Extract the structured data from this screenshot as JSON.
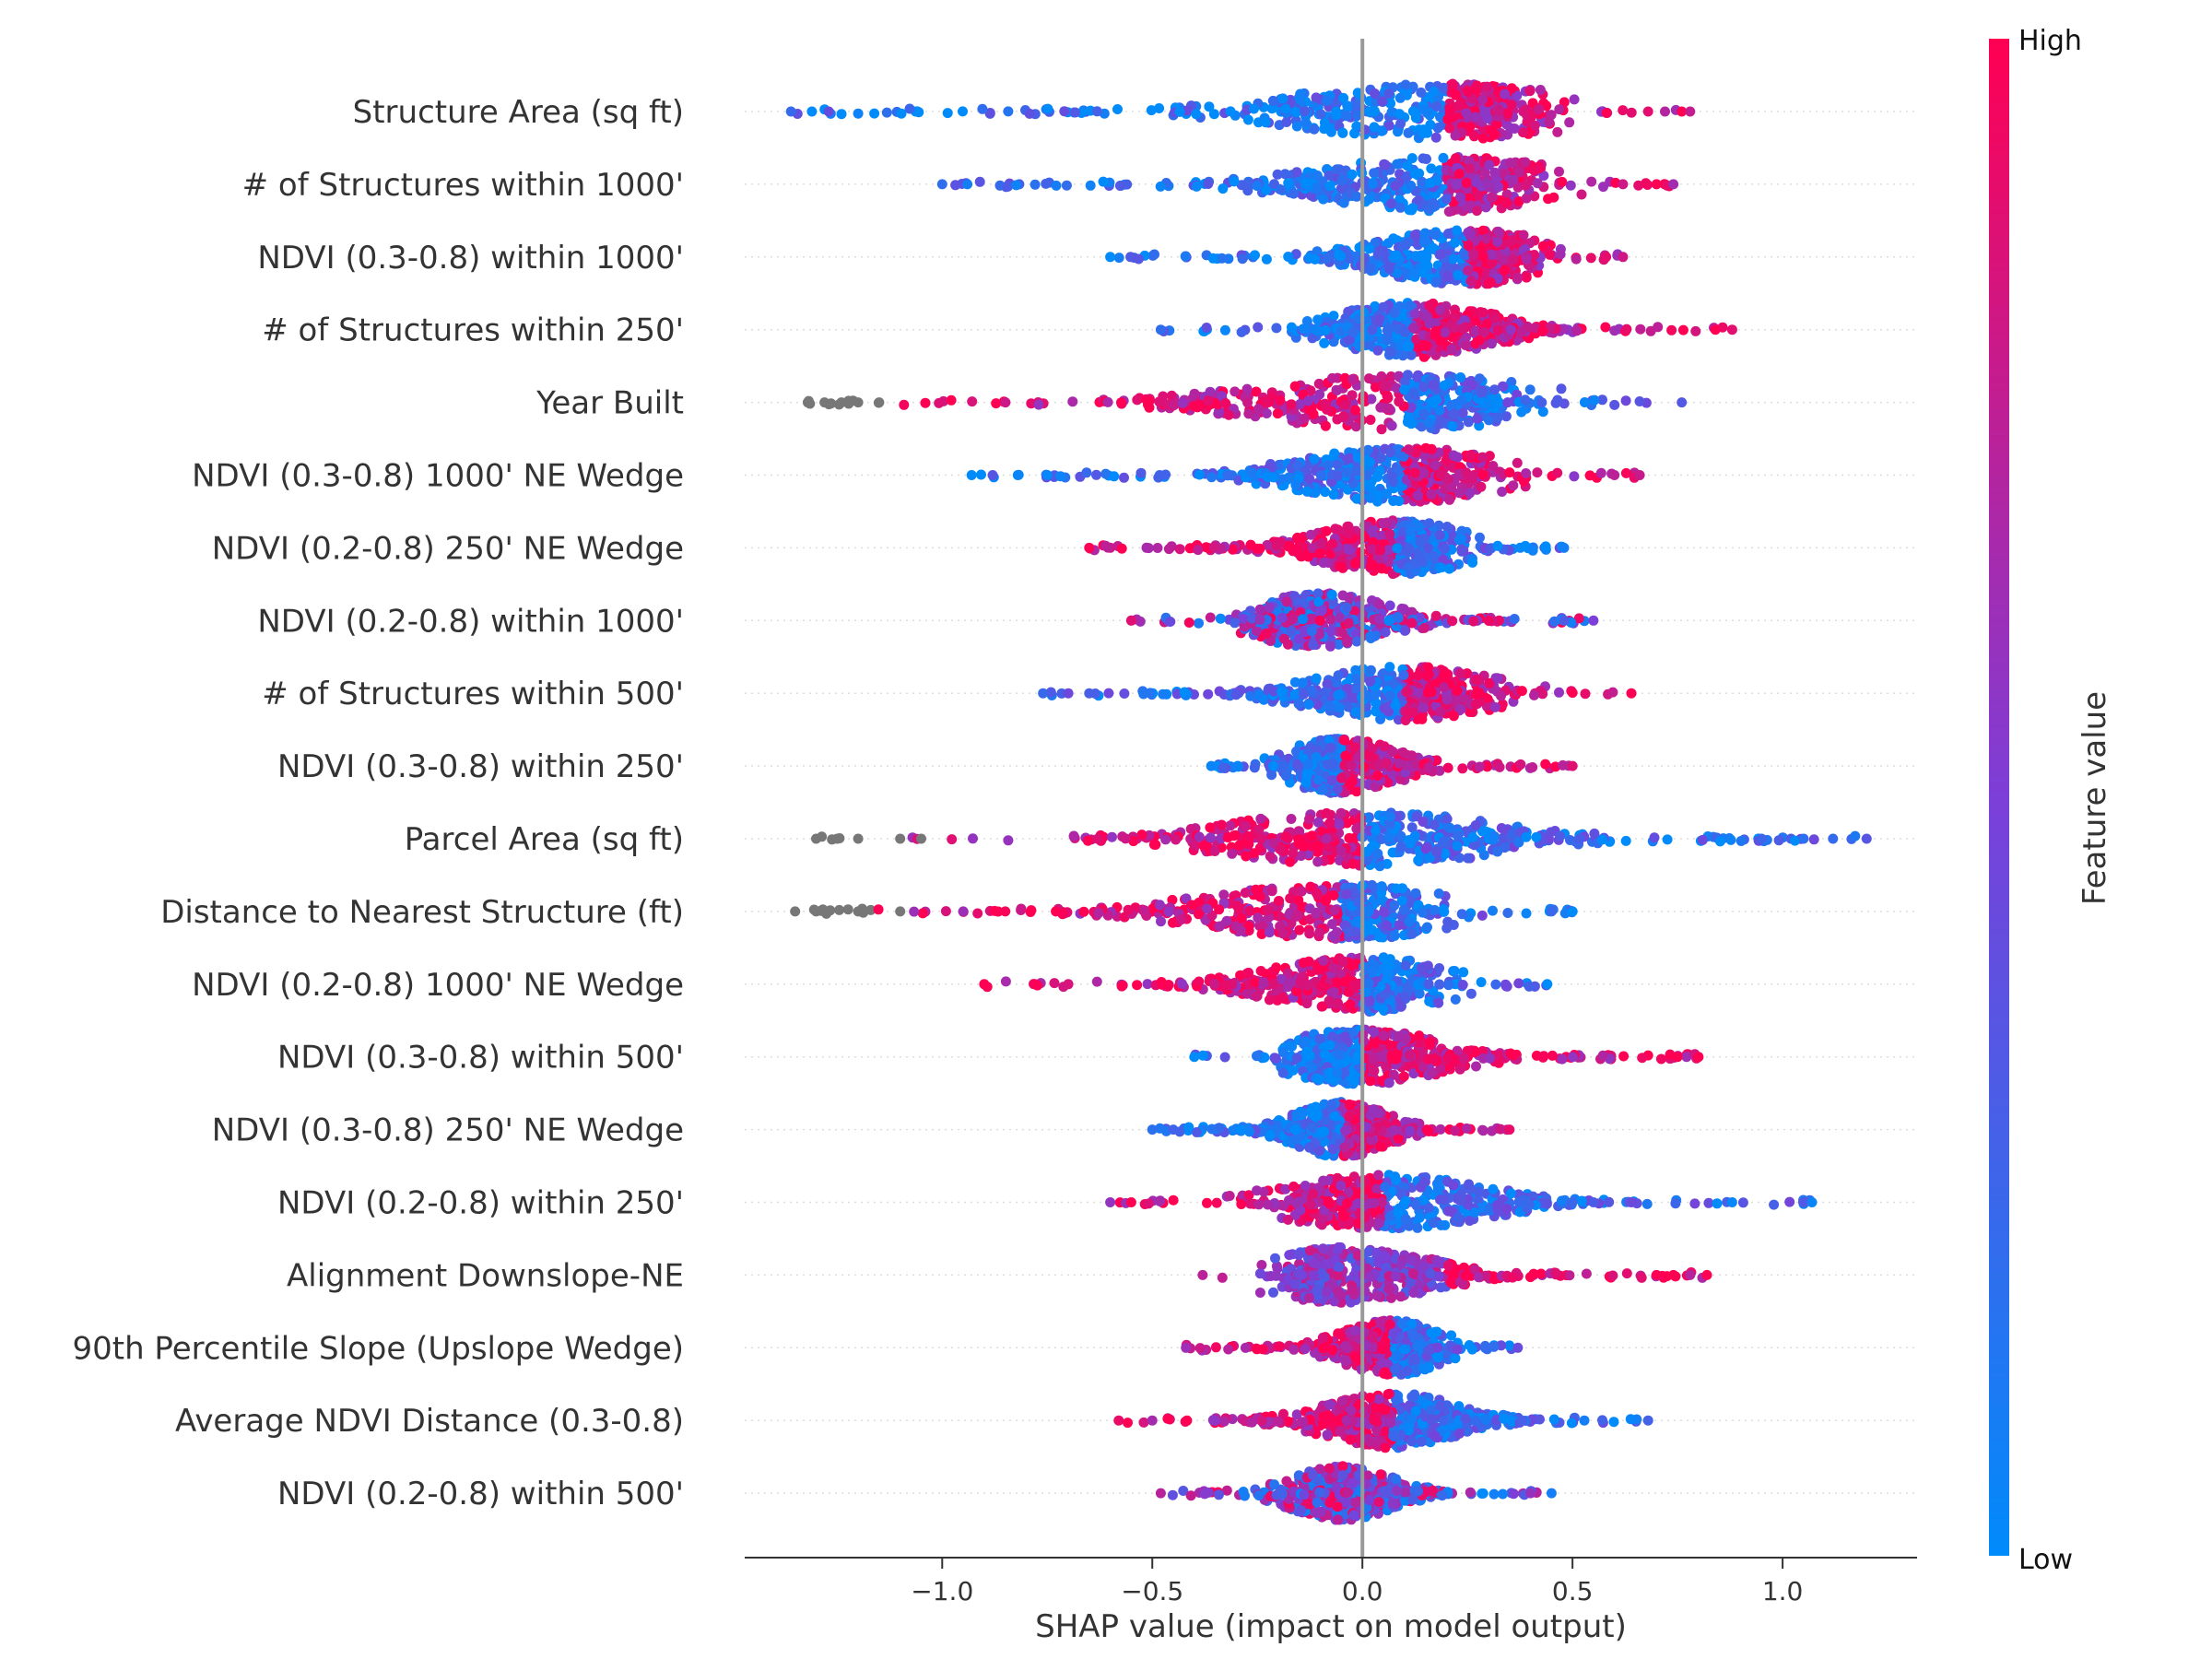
{
  "chart_data": {
    "type": "scatter",
    "subtype": "shap-beeswarm",
    "title": "",
    "xlabel": "SHAP value (impact on model output)",
    "xlim": [
      -1.47,
      1.32
    ],
    "xticks": [
      -1.0,
      -0.5,
      0.0,
      0.5,
      1.0
    ],
    "xtick_labels": [
      "−1.0",
      "−0.5",
      "0.0",
      "0.5",
      "1.0"
    ],
    "zero_line": 0.0,
    "colorbar": {
      "label": "Feature value",
      "high_label": "High",
      "low_label": "Low",
      "low_color": "#008bfb",
      "high_color": "#ff0052",
      "missing_color": "#777777"
    },
    "features": [
      {
        "name": "Structure Area (sq ft)",
        "min": -1.36,
        "max": 0.78,
        "center": 0.2,
        "tails": [
          -1.36,
          -1.31,
          -1.27,
          0.68,
          0.72,
          0.76,
          0.78
        ],
        "pattern": "low-left"
      },
      {
        "name": "# of Structures within 1000'",
        "min": -1.0,
        "max": 0.74,
        "center": 0.2,
        "tails": [
          -1.0,
          -0.94,
          0.62,
          0.7,
          0.74
        ],
        "pattern": "low-left"
      },
      {
        "name": "NDVI (0.3-0.8) within 1000'",
        "min": -0.6,
        "max": 0.62,
        "center": 0.25,
        "tails": [
          -0.6,
          0.58,
          0.62
        ],
        "pattern": "low-left"
      },
      {
        "name": "# of Structures within 250'",
        "min": -0.48,
        "max": 0.88,
        "center": 0.12,
        "tails": [
          -0.48,
          0.84,
          0.88
        ],
        "pattern": "low-left"
      },
      {
        "name": "Year Built",
        "min": -1.32,
        "max": 0.76,
        "center": 0.1,
        "tails": [
          -1.32,
          -1.28,
          -1.24,
          -1.2,
          -1.15,
          0.76
        ],
        "pattern": "high-left-missing"
      },
      {
        "name": "NDVI (0.3-0.8) 1000' NE Wedge",
        "min": -0.93,
        "max": 0.66,
        "center": 0.1,
        "tails": [
          -0.93,
          -0.88,
          -0.82,
          -0.75,
          0.6,
          0.66
        ],
        "pattern": "low-left"
      },
      {
        "name": "NDVI (0.2-0.8) 250' NE Wedge",
        "min": -0.65,
        "max": 0.48,
        "center": 0.08,
        "tails": [
          -0.65,
          0.48
        ],
        "pattern": "high-left"
      },
      {
        "name": "NDVI (0.2-0.8) within 1000'",
        "min": -0.55,
        "max": 0.55,
        "center": -0.1,
        "tails": [
          -0.55,
          0.48,
          0.55
        ],
        "pattern": "mixed"
      },
      {
        "name": "# of Structures within 500'",
        "min": -0.76,
        "max": 0.64,
        "center": 0.1,
        "tails": [
          -0.76,
          -0.7,
          -0.65,
          0.64
        ],
        "pattern": "low-left-high-outliers"
      },
      {
        "name": "NDVI (0.3-0.8) within 250'",
        "min": -0.36,
        "max": 0.5,
        "center": -0.05,
        "tails": [
          -0.36,
          0.5
        ],
        "pattern": "low-left"
      },
      {
        "name": "Parcel Area (sq ft)",
        "min": -1.3,
        "max": 1.2,
        "center": 0.0,
        "tails": [
          -1.3,
          -1.25,
          -1.2,
          -1.1,
          -1.05,
          0.95,
          1.05,
          1.12,
          1.2
        ],
        "pattern": "high-left-missing"
      },
      {
        "name": "Distance to Nearest Structure (ft)",
        "min": -1.35,
        "max": 0.5,
        "center": -0.05,
        "tails": [
          -1.35,
          -1.3,
          -1.2,
          -1.1,
          -0.95,
          -0.85,
          0.45,
          0.5
        ],
        "pattern": "high-left-missing"
      },
      {
        "name": "NDVI (0.2-0.8) 1000' NE Wedge",
        "min": -0.9,
        "max": 0.44,
        "center": 0.0,
        "tails": [
          -0.9,
          -0.78,
          -0.7,
          0.44
        ],
        "pattern": "high-left"
      },
      {
        "name": "NDVI (0.3-0.8) within 500'",
        "min": -0.4,
        "max": 0.8,
        "center": 0.0,
        "tails": [
          -0.4,
          0.75,
          0.8
        ],
        "pattern": "low-left"
      },
      {
        "name": "NDVI (0.3-0.8) 250' NE Wedge",
        "min": -0.5,
        "max": 0.35,
        "center": -0.05,
        "tails": [
          -0.5,
          -0.45,
          0.35
        ],
        "pattern": "low-left"
      },
      {
        "name": "NDVI (0.2-0.8) within 250'",
        "min": -0.6,
        "max": 1.07,
        "center": 0.05,
        "tails": [
          -0.6,
          -0.55,
          0.5,
          0.55,
          0.64,
          0.88,
          1.05,
          1.07
        ],
        "pattern": "high-left"
      },
      {
        "name": "Alignment Downslope-NE",
        "min": -0.38,
        "max": 0.82,
        "center": -0.05,
        "tails": [
          -0.38,
          0.7,
          0.74,
          0.78,
          0.82
        ],
        "pattern": "mixed-right-high"
      },
      {
        "name": "90th Percentile Slope (Upslope Wedge)",
        "min": -0.42,
        "max": 0.37,
        "center": 0.07,
        "tails": [
          -0.42,
          0.37
        ],
        "pattern": "high-left"
      },
      {
        "name": "Average NDVI Distance (0.3-0.8)",
        "min": -0.58,
        "max": 0.68,
        "center": 0.07,
        "tails": [
          -0.58,
          -0.5,
          0.38,
          0.68
        ],
        "pattern": "high-left"
      },
      {
        "name": "NDVI (0.2-0.8) within 500'",
        "min": -0.48,
        "max": 0.45,
        "center": -0.05,
        "tails": [
          -0.48,
          0.4,
          0.45
        ],
        "pattern": "mixed"
      }
    ]
  }
}
